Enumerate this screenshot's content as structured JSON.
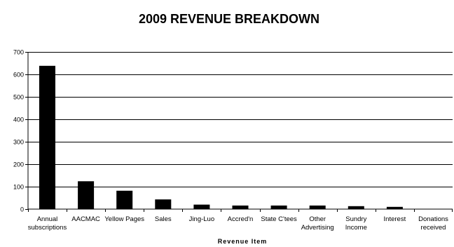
{
  "chart_data": {
    "type": "bar",
    "title": "2009 REVENUE BREAKDOWN",
    "xlabel": "Revenue Item",
    "ylabel": "",
    "ylim": [
      0,
      700
    ],
    "yticks": [
      0,
      100,
      200,
      300,
      400,
      500,
      600,
      700
    ],
    "grid": true,
    "legend": "none",
    "categories": [
      "Annual subscriptions",
      "AACMAC",
      "Yellow Pages",
      "Sales",
      "Jing-Luo",
      "Accred'n",
      "State C'tees",
      "Other Advertising",
      "Sundry Income",
      "Interest",
      "Donations received"
    ],
    "category_lines": [
      [
        "Annual",
        "subscriptions"
      ],
      [
        "AACMAC"
      ],
      [
        "Yellow Pages"
      ],
      [
        "Sales"
      ],
      [
        "Jing-Luo"
      ],
      [
        "Accred'n"
      ],
      [
        "State C'tees"
      ],
      [
        "Other",
        "Advertising"
      ],
      [
        "Sundry",
        "Income"
      ],
      [
        "Interest"
      ],
      [
        "Donations",
        "received"
      ]
    ],
    "values": [
      638,
      124,
      82,
      43,
      20,
      16,
      16,
      16,
      13,
      10,
      0
    ],
    "colors": {
      "bar": "#000000",
      "grid": "#000000",
      "background": "#ffffff"
    }
  }
}
